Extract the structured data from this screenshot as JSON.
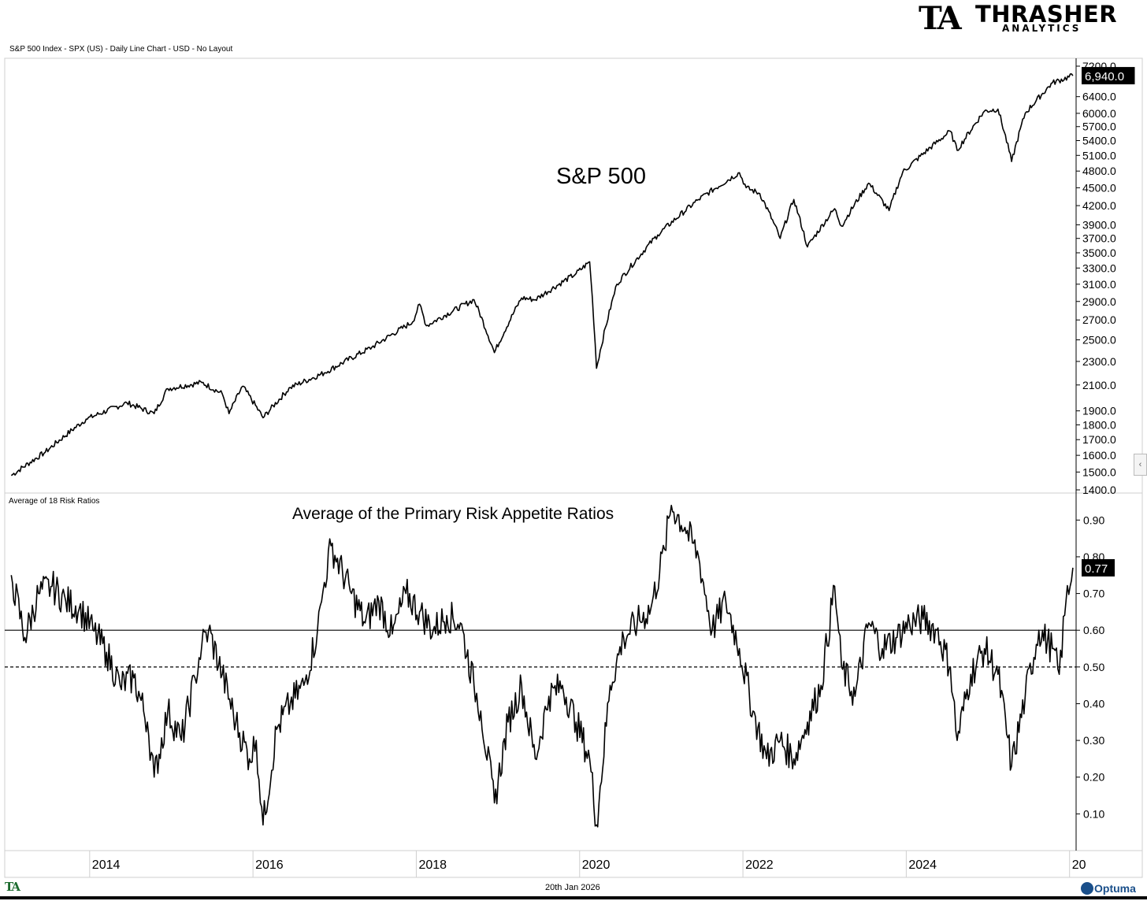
{
  "brand": {
    "logo_mark": "TA",
    "logo_name": "THRASHER",
    "logo_sub": "ANALYTICS",
    "logo_color": "#1c6b2e"
  },
  "header": {
    "description": "S&P 500 Index - SPX (US) - Daily Line Chart - USD - No Layout"
  },
  "footer": {
    "date": "20th Jan 2026",
    "small_logo": "TA",
    "vendor": "Optuma"
  },
  "controls": {
    "collapse_icon": "chevron-left-icon",
    "collapse_glyph": "‹"
  },
  "chart_data": [
    {
      "type": "line",
      "title": "S&P 500",
      "y_scale": "log",
      "ylim": [
        1400,
        7200
      ],
      "yticks": [
        1400,
        1500,
        1600,
        1700,
        1800,
        1900,
        2100,
        2300,
        2500,
        2700,
        2900,
        3100,
        3300,
        3500,
        3700,
        3900,
        4200,
        4500,
        4800,
        5100,
        5400,
        5700,
        6000,
        6400,
        7200
      ],
      "ytick_labels": [
        "1400.0",
        "1500.0",
        "1600.0",
        "1700.0",
        "1800.0",
        "1900.0",
        "2100.0",
        "2300.0",
        "2500.0",
        "2700.0",
        "2900.0",
        "3100.0",
        "3300.0",
        "3500.0",
        "3700.0",
        "3900.0",
        "4200.0",
        "4500.0",
        "4800.0",
        "5100.0",
        "5400.0",
        "5700.0",
        "6000.0",
        "6400.0",
        "7200.0"
      ],
      "last_value_label": "6,940.0",
      "series": [
        {
          "x": [
            "2013-01",
            "2013-06",
            "2013-12",
            "2014-06",
            "2014-10",
            "2014-12",
            "2015-05",
            "2015-08",
            "2015-09",
            "2015-11",
            "2016-02",
            "2016-06",
            "2016-11",
            "2017-06",
            "2017-12",
            "2018-01",
            "2018-02",
            "2018-09",
            "2018-12",
            "2019-04",
            "2019-06",
            "2019-12",
            "2020-02",
            "2020-03",
            "2020-06",
            "2020-12",
            "2021-06",
            "2021-12",
            "2022-01",
            "2022-03",
            "2022-06",
            "2022-08",
            "2022-10",
            "2023-02",
            "2023-03",
            "2023-07",
            "2023-10",
            "2023-12",
            "2024-07",
            "2024-08",
            "2024-12",
            "2025-02",
            "2025-04",
            "2025-06",
            "2025-10",
            "2026-01"
          ],
          "y": [
            1480,
            1620,
            1840,
            1960,
            1880,
            2070,
            2120,
            2030,
            1880,
            2090,
            1850,
            2080,
            2200,
            2430,
            2680,
            2870,
            2640,
            2920,
            2380,
            2940,
            2920,
            3230,
            3380,
            2240,
            3100,
            3750,
            4300,
            4770,
            4500,
            4400,
            3700,
            4300,
            3580,
            4150,
            3880,
            4580,
            4120,
            4780,
            5600,
            5200,
            6050,
            6100,
            4980,
            6000,
            6750,
            6940
          ]
        }
      ]
    },
    {
      "type": "line",
      "title": "Average of the Primary Risk Appetite Ratios",
      "subtitle": "Average of 18 Risk Ratios",
      "ylim": [
        0.0,
        0.95
      ],
      "yticks": [
        0.1,
        0.2,
        0.3,
        0.4,
        0.5,
        0.6,
        0.7,
        0.8,
        0.9
      ],
      "ytick_labels": [
        "0.10",
        "0.20",
        "0.30",
        "0.40",
        "0.50",
        "0.60",
        "0.70",
        "0.80",
        "0.90"
      ],
      "last_value_label": "0.77",
      "reference_lines": [
        {
          "value": 0.6,
          "style": "solid"
        },
        {
          "value": 0.5,
          "style": "dashed"
        }
      ],
      "x_tick_labels": [
        "2014",
        "2016",
        "2018",
        "2020",
        "2022",
        "2024",
        "20"
      ],
      "series": [
        {
          "x": [
            "2013-01",
            "2013-03",
            "2013-05",
            "2013-07",
            "2013-09",
            "2013-11",
            "2014-01",
            "2014-03",
            "2014-05",
            "2014-07",
            "2014-09",
            "2014-10",
            "2014-12",
            "2015-02",
            "2015-04",
            "2015-05",
            "2015-06",
            "2015-08",
            "2015-10",
            "2015-12",
            "2016-01",
            "2016-02",
            "2016-04",
            "2016-06",
            "2016-08",
            "2016-10",
            "2016-11",
            "2016-12",
            "2017-03",
            "2017-05",
            "2017-07",
            "2017-09",
            "2017-11",
            "2018-01",
            "2018-03",
            "2018-05",
            "2018-07",
            "2018-09",
            "2018-10",
            "2018-12",
            "2019-02",
            "2019-04",
            "2019-06",
            "2019-08",
            "2019-10",
            "2019-12",
            "2020-02",
            "2020-03",
            "2020-05",
            "2020-07",
            "2020-09",
            "2020-11",
            "2021-01",
            "2021-02",
            "2021-04",
            "2021-06",
            "2021-08",
            "2021-10",
            "2021-12",
            "2022-02",
            "2022-04",
            "2022-06",
            "2022-08",
            "2022-10",
            "2022-12",
            "2023-02",
            "2023-03",
            "2023-05",
            "2023-07",
            "2023-09",
            "2023-11",
            "2024-01",
            "2024-03",
            "2024-05",
            "2024-07",
            "2024-08",
            "2024-10",
            "2024-12",
            "2025-02",
            "2025-04",
            "2025-06",
            "2025-08",
            "2025-10",
            "2025-11",
            "2025-12",
            "2026-01"
          ],
          "y": [
            0.75,
            0.58,
            0.7,
            0.72,
            0.68,
            0.66,
            0.6,
            0.54,
            0.45,
            0.47,
            0.35,
            0.2,
            0.38,
            0.3,
            0.47,
            0.56,
            0.6,
            0.48,
            0.35,
            0.25,
            0.3,
            0.07,
            0.33,
            0.4,
            0.45,
            0.6,
            0.73,
            0.83,
            0.7,
            0.62,
            0.68,
            0.59,
            0.7,
            0.65,
            0.6,
            0.64,
            0.62,
            0.45,
            0.38,
            0.13,
            0.35,
            0.45,
            0.25,
            0.42,
            0.45,
            0.35,
            0.25,
            0.07,
            0.45,
            0.58,
            0.62,
            0.66,
            0.82,
            0.94,
            0.88,
            0.8,
            0.6,
            0.68,
            0.55,
            0.38,
            0.25,
            0.3,
            0.25,
            0.35,
            0.45,
            0.72,
            0.5,
            0.42,
            0.62,
            0.55,
            0.58,
            0.62,
            0.63,
            0.6,
            0.5,
            0.3,
            0.48,
            0.55,
            0.48,
            0.23,
            0.42,
            0.6,
            0.55,
            0.48,
            0.68,
            0.77
          ]
        }
      ]
    }
  ]
}
